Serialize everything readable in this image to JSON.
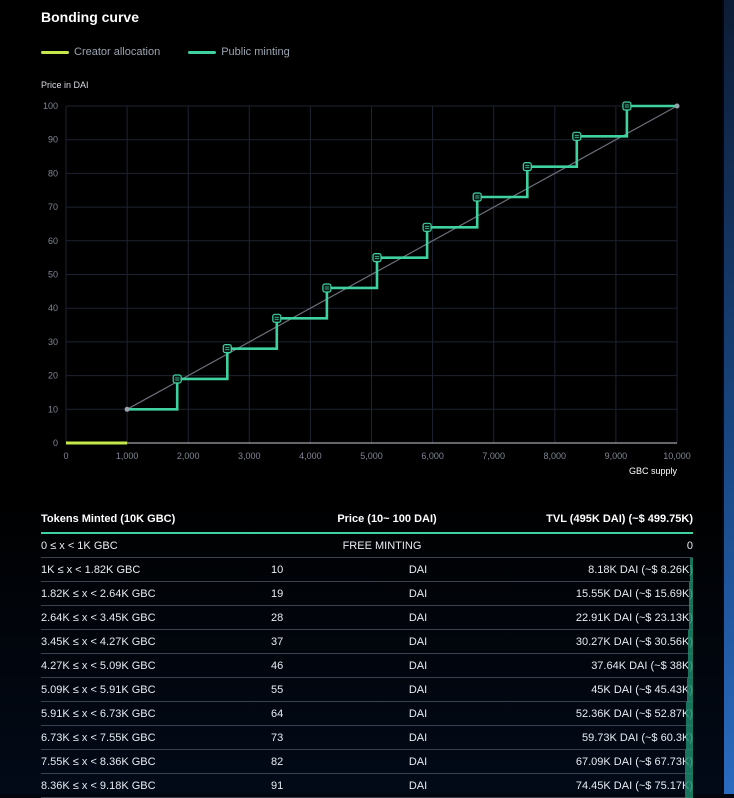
{
  "title": "Bonding curve",
  "legend": [
    {
      "label": "Creator allocation",
      "color": "#c6e84b"
    },
    {
      "label": "Public minting",
      "color": "#3fd2a0"
    }
  ],
  "chart_data": {
    "type": "line",
    "ylabel": "Price in DAI",
    "xlabel": "GBC supply",
    "xlim": [
      0,
      10000
    ],
    "ylim": [
      0,
      100
    ],
    "x_ticks": [
      "0",
      "1,000",
      "2,000",
      "3,000",
      "4,000",
      "5,000",
      "6,000",
      "7,000",
      "8,000",
      "9,000",
      "10,000"
    ],
    "y_ticks": [
      "0",
      "10",
      "20",
      "30",
      "40",
      "50",
      "60",
      "70",
      "80",
      "90",
      "100"
    ],
    "grid": true,
    "series": [
      {
        "name": "Creator allocation",
        "color": "#c6e84b",
        "points": [
          [
            0,
            0
          ],
          [
            1000,
            0
          ]
        ]
      },
      {
        "name": "Public minting",
        "color": "#3fd2a0",
        "step": true,
        "points": [
          [
            1000,
            10
          ],
          [
            1820,
            19
          ],
          [
            2640,
            28
          ],
          [
            3450,
            37
          ],
          [
            4270,
            46
          ],
          [
            5090,
            55
          ],
          [
            5910,
            64
          ],
          [
            6730,
            73
          ],
          [
            7550,
            82
          ],
          [
            8360,
            91
          ],
          [
            9180,
            100
          ],
          [
            10000,
            100
          ]
        ]
      },
      {
        "name": "",
        "color": "#6b6f78",
        "points": [
          [
            1000,
            10
          ],
          [
            10000,
            100
          ]
        ]
      }
    ]
  },
  "table": {
    "headers": [
      "Tokens Minted (10K GBC)",
      "Price (10~ 100 DAI)",
      "TVL (495K DAI) (~$ 499.75K)"
    ],
    "free_row": {
      "range": "0 ≤ x < 1K GBC",
      "label": "FREE MINTING",
      "tvl": "0"
    },
    "rows": [
      {
        "range": "1K ≤ x < 1.82K GBC",
        "price": "10",
        "unit": "DAI",
        "tvl": "8.18K DAI (~$ 8.26K)"
      },
      {
        "range": "1.82K ≤ x < 2.64K GBC",
        "price": "19",
        "unit": "DAI",
        "tvl": "15.55K DAI (~$ 15.69K)"
      },
      {
        "range": "2.64K ≤ x < 3.45K GBC",
        "price": "28",
        "unit": "DAI",
        "tvl": "22.91K DAI (~$ 23.13K)"
      },
      {
        "range": "3.45K ≤ x < 4.27K GBC",
        "price": "37",
        "unit": "DAI",
        "tvl": "30.27K DAI (~$ 30.56K)"
      },
      {
        "range": "4.27K ≤ x < 5.09K GBC",
        "price": "46",
        "unit": "DAI",
        "tvl": "37.64K DAI (~$ 38K)"
      },
      {
        "range": "5.09K ≤ x < 5.91K GBC",
        "price": "55",
        "unit": "DAI",
        "tvl": "45K DAI (~$ 45.43K)"
      },
      {
        "range": "5.91K ≤ x < 6.73K GBC",
        "price": "64",
        "unit": "DAI",
        "tvl": "52.36K DAI (~$ 52.87K)"
      },
      {
        "range": "6.73K ≤ x < 7.55K GBC",
        "price": "73",
        "unit": "DAI",
        "tvl": "59.73K DAI (~$ 60.3K)"
      },
      {
        "range": "7.55K ≤ x < 8.36K GBC",
        "price": "82",
        "unit": "DAI",
        "tvl": "67.09K DAI (~$ 67.73K)"
      },
      {
        "range": "8.36K ≤ x < 9.18K GBC",
        "price": "91",
        "unit": "DAI",
        "tvl": "74.45K DAI (~$ 75.17K)"
      }
    ]
  }
}
